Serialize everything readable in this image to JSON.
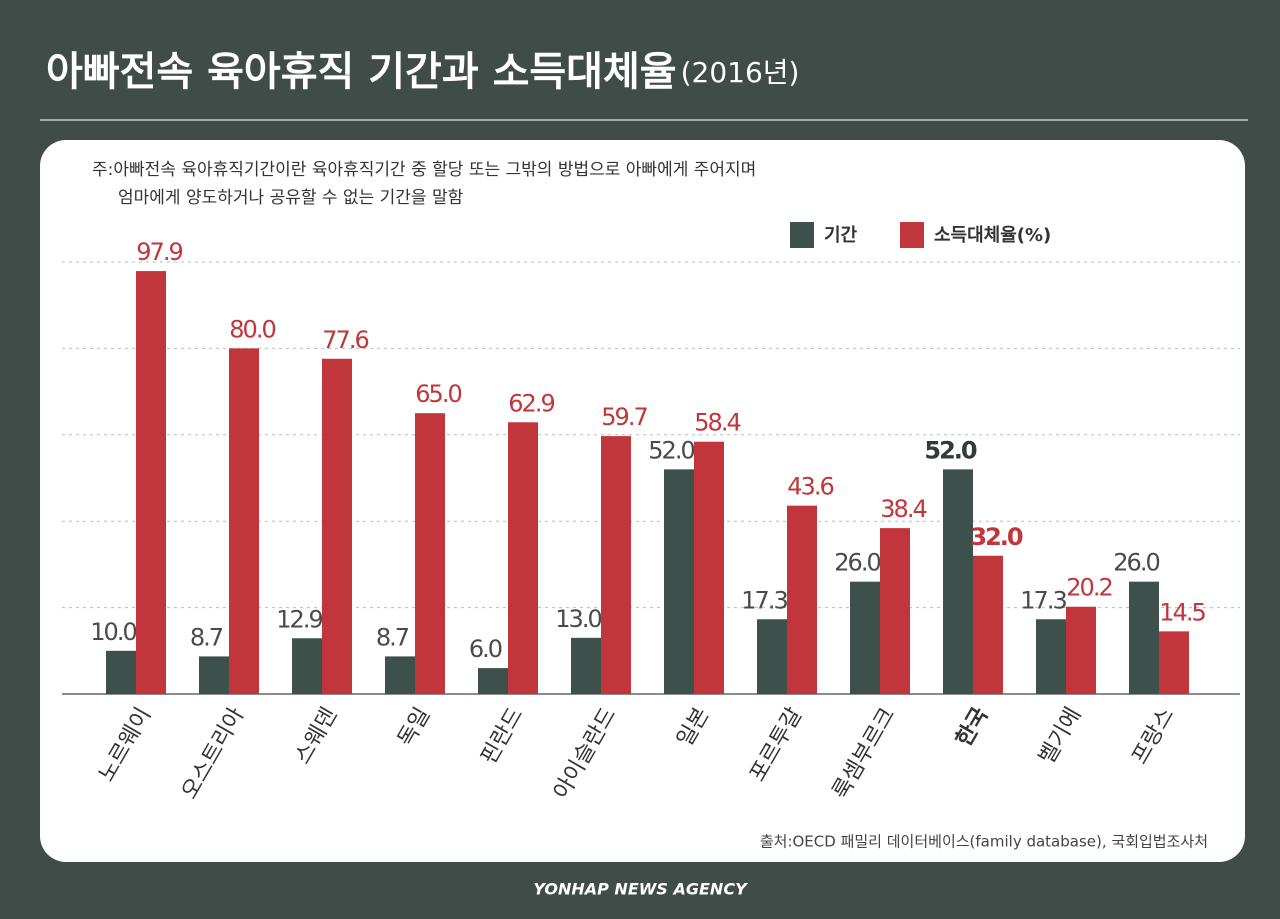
{
  "chart_data": {
    "type": "bar",
    "title": "아빠전속 육아휴직 기간과 소득대체율",
    "title_suffix": "(2016년)",
    "note": [
      "주:아빠전속 육아휴직기간이란 육아휴직기간 중 할당 또는 그밖의 방법으로 아빠에게 주어지며",
      "엄마에게 양도하거나 공유할 수 없는 기간을 말함"
    ],
    "source": "출처:OECD 패밀리 데이터베이스(family database), 국회입법조사처",
    "footer": "YONHAP NEWS AGENCY",
    "categories": [
      "노르웨이",
      "오스트리아",
      "스웨덴",
      "독일",
      "핀란드",
      "아이슬란드",
      "일본",
      "포르투갈",
      "룩셈부르크",
      "한국",
      "벨기에",
      "프랑스"
    ],
    "highlight_index": 9,
    "series": [
      {
        "name": "기간",
        "color": "#3e504b",
        "values": [
          10,
          8.7,
          12.9,
          8.7,
          6,
          13,
          52,
          17.3,
          26,
          52,
          17.3,
          26
        ],
        "value_labels": [
          "10.0",
          "8.7",
          "12.9",
          "8.7",
          "6.0",
          "13.0",
          "52.0",
          "17.3",
          "26.0",
          "52.0",
          "17.3",
          "26.0"
        ]
      },
      {
        "name": "소득대체율(%)",
        "color": "#c1363b",
        "values": [
          97.9,
          80,
          77.6,
          65,
          62.9,
          59.7,
          58.4,
          43.6,
          38.4,
          32,
          20.2,
          14.5
        ],
        "value_labels": [
          "97.9",
          "80.0",
          "77.6",
          "65.0",
          "62.9",
          "59.7",
          "58.4",
          "43.6",
          "38.4",
          "32.0",
          "20.2",
          "14.5"
        ]
      }
    ],
    "ylim": [
      0,
      100
    ],
    "yticks": [
      0,
      20,
      40,
      60,
      80,
      100
    ],
    "grid": true
  }
}
